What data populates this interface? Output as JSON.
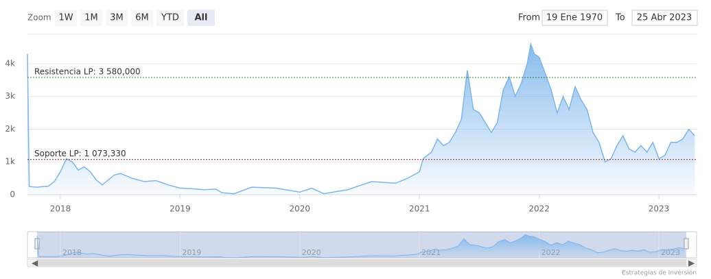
{
  "range_selector": {
    "zoom_label": "Zoom",
    "buttons": [
      "1W",
      "1M",
      "3M",
      "6M",
      "YTD",
      "All"
    ],
    "selected": "All"
  },
  "date_range": {
    "from_label": "From",
    "from": "19 Ene 1970",
    "to_label": "To",
    "to": "25 Abr 2023"
  },
  "credits": "Estrategias de Inversión",
  "chart_data": {
    "type": "area",
    "color": "#7cb5ec",
    "x": [
      2017.725,
      2017.74,
      2017.8,
      2017.9,
      2017.95,
      2018.0,
      2018.05,
      2018.1,
      2018.15,
      2018.2,
      2018.25,
      2018.3,
      2018.35,
      2018.45,
      2018.5,
      2018.6,
      2018.7,
      2018.8,
      2018.9,
      2019.0,
      2019.1,
      2019.2,
      2019.3,
      2019.35,
      2019.45,
      2019.6,
      2019.8,
      2020.0,
      2020.1,
      2020.2,
      2020.4,
      2020.6,
      2020.8,
      2020.9,
      2021.0,
      2021.03,
      2021.1,
      2021.15,
      2021.2,
      2021.25,
      2021.3,
      2021.35,
      2021.38,
      2021.4,
      2021.45,
      2021.5,
      2021.55,
      2021.6,
      2021.65,
      2021.7,
      2021.75,
      2021.8,
      2021.85,
      2021.9,
      2021.93,
      2021.96,
      2022.0,
      2022.05,
      2022.1,
      2022.15,
      2022.2,
      2022.25,
      2022.3,
      2022.35,
      2022.4,
      2022.45,
      2022.5,
      2022.55,
      2022.6,
      2022.65,
      2022.7,
      2022.75,
      2022.8,
      2022.85,
      2022.9,
      2022.95,
      2023.0,
      2023.05,
      2023.1,
      2023.15,
      2023.2,
      2023.25,
      2023.3
    ],
    "values": [
      4300,
      250,
      230,
      260,
      400,
      700,
      1100,
      1000,
      750,
      850,
      700,
      450,
      300,
      600,
      650,
      500,
      400,
      430,
      300,
      200,
      180,
      150,
      170,
      60,
      30,
      230,
      200,
      80,
      200,
      30,
      150,
      400,
      350,
      500,
      700,
      1100,
      1300,
      1700,
      1500,
      1600,
      1900,
      2300,
      3200,
      3800,
      2600,
      2500,
      2200,
      1900,
      2200,
      3200,
      3600,
      3000,
      3400,
      4000,
      4600,
      4300,
      4200,
      3700,
      3200,
      2500,
      3000,
      2600,
      3300,
      2900,
      2600,
      1900,
      1600,
      1000,
      1100,
      1500,
      1800,
      1400,
      1300,
      1500,
      1300,
      1600,
      1100,
      1200,
      1600,
      1600,
      1700,
      2000,
      1800
    ],
    "xlim": [
      2017.725,
      2023.315
    ],
    "xticks": [
      2018,
      2019,
      2020,
      2021,
      2022,
      2023
    ],
    "ylim": [
      0,
      4900
    ],
    "yticks": [
      0,
      {
        "value": 1000,
        "label": "1k"
      },
      {
        "value": 2000,
        "label": "2k"
      },
      {
        "value": 3000,
        "label": "3k"
      },
      {
        "value": 4000,
        "label": "4k"
      }
    ],
    "grid": true,
    "plot_lines": [
      {
        "value": 3580,
        "label": "Resistencia LP: 3 580,000",
        "color": "#2e7d32"
      },
      {
        "value": 1073.33,
        "label": "Soporte LP: 1 073,330",
        "color": "#8b1a1a"
      }
    ]
  }
}
